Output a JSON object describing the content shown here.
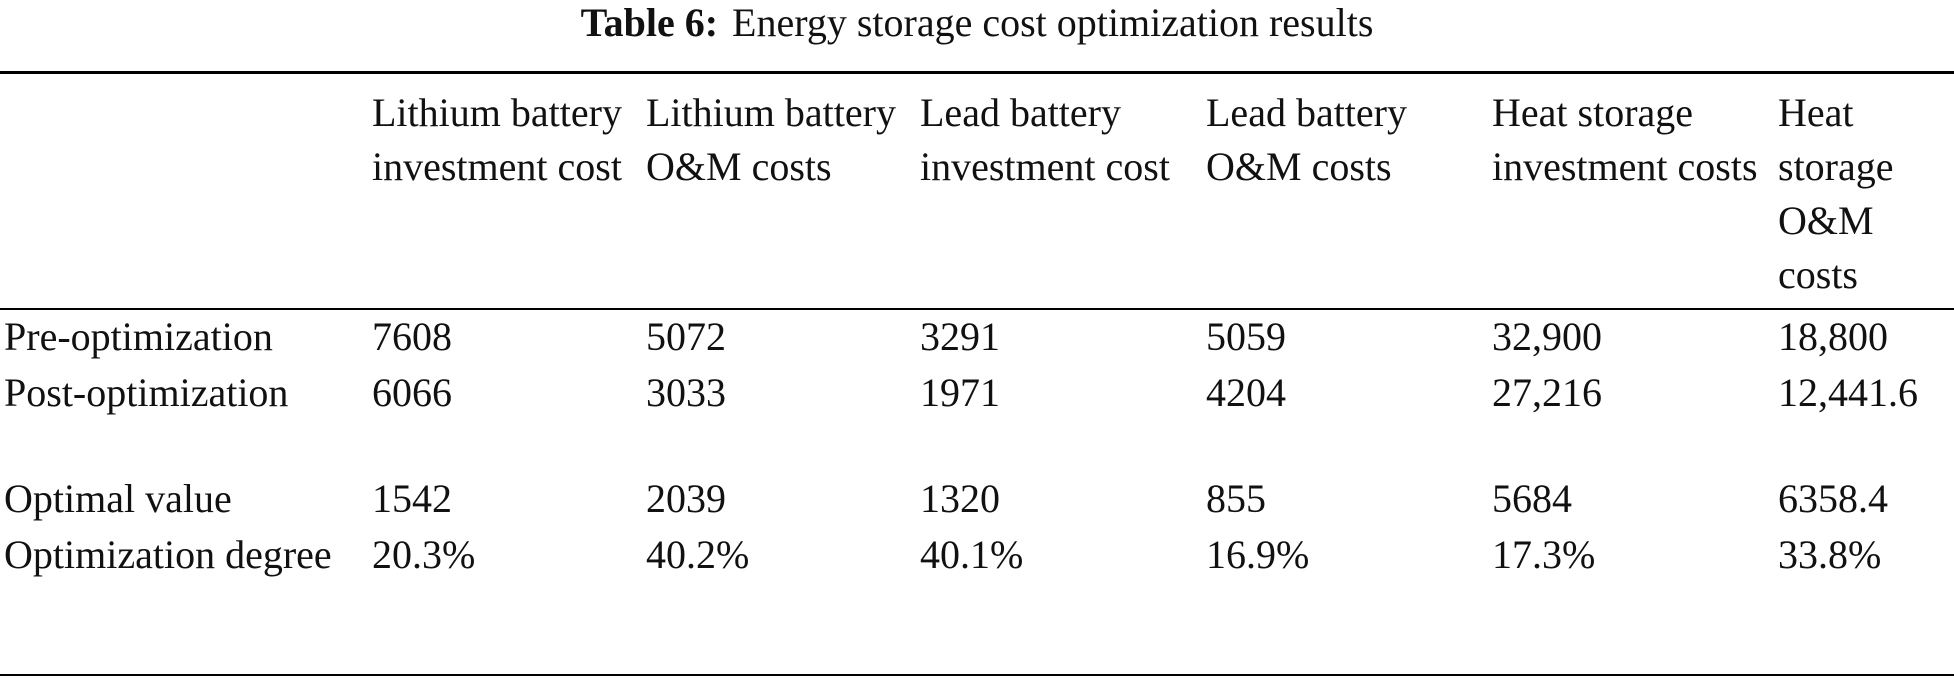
{
  "caption": {
    "label": "Table 6:",
    "text": "Energy storage cost optimization results"
  },
  "table": {
    "columns": [
      "",
      "Lithium battery investment cost",
      "Lithium battery O&M costs",
      "Lead battery investment cost",
      "Lead battery O&M costs",
      "Heat storage investment costs",
      "Heat storage O&M costs"
    ],
    "rows": [
      [
        "Pre-optimization",
        "7608",
        "5072",
        "3291",
        "5059",
        "32,900",
        "18,800"
      ],
      [
        "Post-optimization",
        "6066",
        "3033",
        "1971",
        "4204",
        "27,216",
        "12,441.6"
      ],
      [
        "Optimal value",
        "1542",
        "2039",
        "1320",
        "855",
        "5684",
        "6358.4"
      ],
      [
        "Optimization degree",
        "20.3%",
        "40.2%",
        "40.1%",
        "16.9%",
        "17.3%",
        "33.8%"
      ]
    ]
  }
}
